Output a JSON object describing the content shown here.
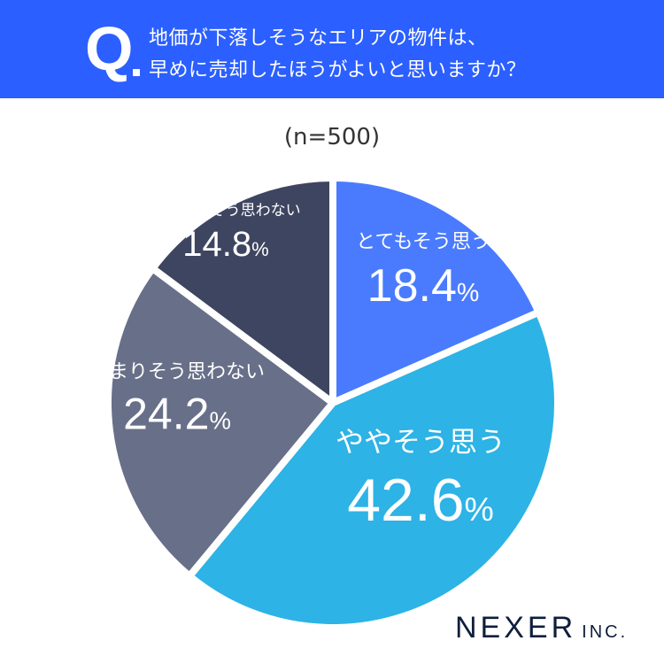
{
  "header": {
    "q_mark": "Q",
    "title_line1": "地価が下落しそうなエリアの物件は、",
    "title_line2": "早めに売却したほうがよいと思いますか？"
  },
  "sample_size": "(n=500)",
  "logo": {
    "main": "NEXER",
    "suffix": "INC."
  },
  "chart_data": {
    "type": "pie",
    "title": "地価が下落しそうなエリアの物件は、早めに売却したほうがよいと思いますか？",
    "subtitle": "(n=500)",
    "start": "top",
    "direction": "clockwise",
    "slices": [
      {
        "label": "とてもそう思う",
        "value": 18.4,
        "display": "18.4",
        "color": "#4A7BFF"
      },
      {
        "label": "ややそう思う",
        "value": 42.6,
        "display": "42.6",
        "color": "#2DB3E5"
      },
      {
        "label": "あまりそう思わない",
        "value": 24.2,
        "display": "24.2",
        "color": "#686F88"
      },
      {
        "label": "まったくそう思わない",
        "value": 14.8,
        "display": "14.8",
        "color": "#3E4560"
      }
    ],
    "unit": "%"
  }
}
